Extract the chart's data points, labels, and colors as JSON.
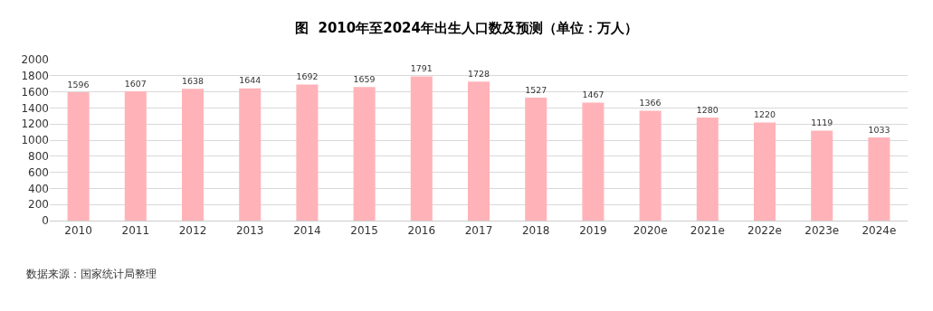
{
  "chart_data": {
    "type": "bar",
    "title": "图  2010年至2024年出生人口数及预测（单位：万人）",
    "categories": [
      "2010",
      "2011",
      "2012",
      "2013",
      "2014",
      "2015",
      "2016",
      "2017",
      "2018",
      "2019",
      "2020e",
      "2021e",
      "2022e",
      "2023e",
      "2024e"
    ],
    "values": [
      1596,
      1607,
      1638,
      1644,
      1692,
      1659,
      1791,
      1728,
      1527,
      1467,
      1366,
      1280,
      1220,
      1119,
      1033
    ],
    "color": "#ffb3b8",
    "ylim": [
      0,
      2000
    ],
    "yticks": [
      0,
      200,
      400,
      600,
      800,
      1000,
      1200,
      1400,
      1600,
      1800,
      2000
    ],
    "grid": "y",
    "data_labels": true,
    "annotations": [
      "数据来源：国家统计局整理"
    ]
  }
}
